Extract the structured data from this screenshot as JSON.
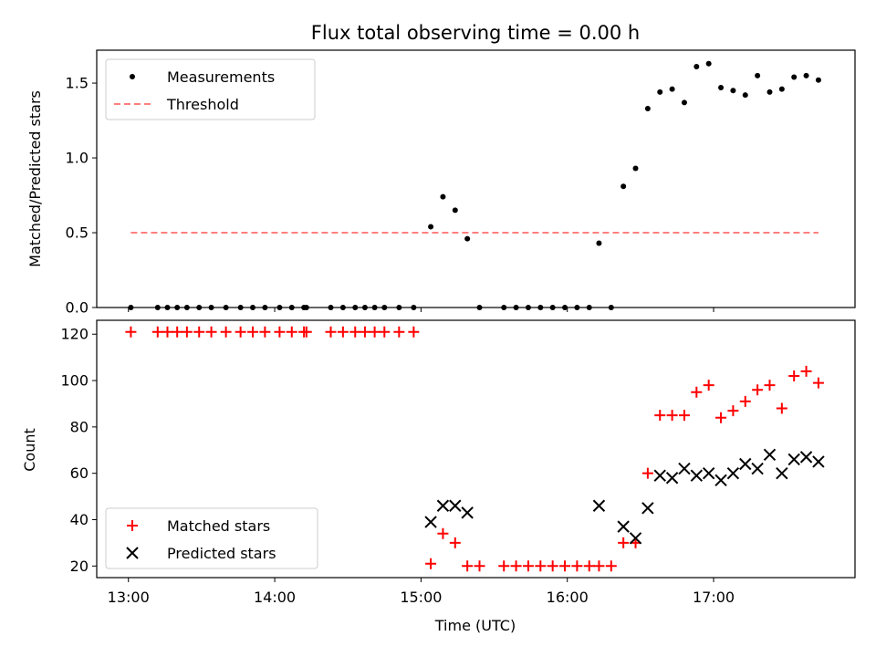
{
  "figure": {
    "title": "Flux total observing time = 0.00 h"
  },
  "chart_data": [
    {
      "type": "scatter",
      "title": "Flux total observing time = 0.00 h",
      "xlabel": "",
      "ylabel": "Matched/Predicted stars",
      "x_axis": {
        "type": "time",
        "range": [
          "12:47",
          "17:58"
        ],
        "ticks": [
          "13:00",
          "14:00",
          "15:00",
          "16:00",
          "17:00"
        ],
        "tick_labels_shown": false
      },
      "ylim": [
        0,
        1.72
      ],
      "yticks": [
        "0.0",
        "0.5",
        "1.0",
        "1.5"
      ],
      "legend": {
        "placement": "top-left",
        "entries": [
          "Measurements",
          "Threshold"
        ]
      },
      "grid": false,
      "series": [
        {
          "name": "Measurements",
          "marker": "dot",
          "color": "#000000",
          "points": [
            [
              "13:01",
              0
            ],
            [
              "13:12",
              0
            ],
            [
              "13:16",
              0
            ],
            [
              "13:20",
              0
            ],
            [
              "13:24",
              0
            ],
            [
              "13:29",
              0
            ],
            [
              "13:34",
              0
            ],
            [
              "13:40",
              0
            ],
            [
              "13:46",
              0
            ],
            [
              "13:51",
              0
            ],
            [
              "13:56",
              0
            ],
            [
              "14:02",
              0
            ],
            [
              "14:07",
              0
            ],
            [
              "14:12",
              0
            ],
            [
              "14:13",
              0
            ],
            [
              "14:23",
              0
            ],
            [
              "14:28",
              0
            ],
            [
              "14:33",
              0
            ],
            [
              "14:37",
              0
            ],
            [
              "14:41",
              0
            ],
            [
              "14:45",
              0
            ],
            [
              "14:51",
              0
            ],
            [
              "14:57",
              0
            ],
            [
              "15:04",
              0.54
            ],
            [
              "15:09",
              0.74
            ],
            [
              "15:14",
              0.65
            ],
            [
              "15:19",
              0.46
            ],
            [
              "15:24",
              0
            ],
            [
              "15:34",
              0
            ],
            [
              "15:39",
              0
            ],
            [
              "15:44",
              0
            ],
            [
              "15:49",
              0
            ],
            [
              "15:54",
              0
            ],
            [
              "15:59",
              0
            ],
            [
              "16:04",
              0
            ],
            [
              "16:09",
              0
            ],
            [
              "16:13",
              0.43
            ],
            [
              "16:18",
              0
            ],
            [
              "16:23",
              0.81
            ],
            [
              "16:28",
              0.93
            ],
            [
              "16:33",
              1.33
            ],
            [
              "16:38",
              1.44
            ],
            [
              "16:43",
              1.46
            ],
            [
              "16:48",
              1.37
            ],
            [
              "16:53",
              1.61
            ],
            [
              "16:58",
              1.63
            ],
            [
              "17:03",
              1.47
            ],
            [
              "17:08",
              1.45
            ],
            [
              "17:13",
              1.42
            ],
            [
              "17:18",
              1.55
            ],
            [
              "17:23",
              1.44
            ],
            [
              "17:28",
              1.46
            ],
            [
              "17:33",
              1.54
            ],
            [
              "17:38",
              1.55
            ],
            [
              "17:43",
              1.52
            ]
          ]
        },
        {
          "name": "Threshold",
          "style": "dashed",
          "color": "#ff7f7f",
          "points": [
            [
              "13:01",
              0.5
            ],
            [
              "17:43",
              0.5
            ]
          ]
        }
      ]
    },
    {
      "type": "scatter",
      "title": "",
      "xlabel": "Time (UTC)",
      "ylabel": "Count",
      "x_axis": {
        "type": "time",
        "range": [
          "12:47",
          "17:58"
        ],
        "ticks": [
          "13:00",
          "14:00",
          "15:00",
          "16:00",
          "17:00"
        ]
      },
      "ylim": [
        15,
        126
      ],
      "yticks": [
        "20",
        "40",
        "60",
        "80",
        "100",
        "120"
      ],
      "legend": {
        "placement": "bottom-left",
        "entries": [
          "Matched stars",
          "Predicted stars"
        ]
      },
      "grid": false,
      "series": [
        {
          "name": "Matched stars",
          "marker": "plus",
          "color": "#ff0000",
          "points": [
            [
              "13:01",
              121
            ],
            [
              "13:12",
              121
            ],
            [
              "13:16",
              121
            ],
            [
              "13:20",
              121
            ],
            [
              "13:24",
              121
            ],
            [
              "13:29",
              121
            ],
            [
              "13:34",
              121
            ],
            [
              "13:40",
              121
            ],
            [
              "13:46",
              121
            ],
            [
              "13:51",
              121
            ],
            [
              "13:56",
              121
            ],
            [
              "14:02",
              121
            ],
            [
              "14:07",
              121
            ],
            [
              "14:12",
              121
            ],
            [
              "14:13",
              121
            ],
            [
              "14:23",
              121
            ],
            [
              "14:28",
              121
            ],
            [
              "14:33",
              121
            ],
            [
              "14:37",
              121
            ],
            [
              "14:41",
              121
            ],
            [
              "14:45",
              121
            ],
            [
              "14:51",
              121
            ],
            [
              "14:57",
              121
            ],
            [
              "15:04",
              21
            ],
            [
              "15:09",
              34
            ],
            [
              "15:14",
              30
            ],
            [
              "15:19",
              20
            ],
            [
              "15:24",
              20
            ],
            [
              "15:34",
              20
            ],
            [
              "15:39",
              20
            ],
            [
              "15:44",
              20
            ],
            [
              "15:49",
              20
            ],
            [
              "15:54",
              20
            ],
            [
              "15:59",
              20
            ],
            [
              "16:04",
              20
            ],
            [
              "16:09",
              20
            ],
            [
              "16:13",
              20
            ],
            [
              "16:18",
              20
            ],
            [
              "16:23",
              30
            ],
            [
              "16:28",
              30
            ],
            [
              "16:33",
              60
            ],
            [
              "16:38",
              85
            ],
            [
              "16:43",
              85
            ],
            [
              "16:48",
              85
            ],
            [
              "16:53",
              95
            ],
            [
              "16:58",
              98
            ],
            [
              "17:03",
              84
            ],
            [
              "17:08",
              87
            ],
            [
              "17:13",
              91
            ],
            [
              "17:18",
              96
            ],
            [
              "17:23",
              98
            ],
            [
              "17:28",
              88
            ],
            [
              "17:33",
              102
            ],
            [
              "17:38",
              104
            ],
            [
              "17:43",
              99
            ]
          ]
        },
        {
          "name": "Predicted stars",
          "marker": "x",
          "color": "#000000",
          "points": [
            [
              "15:04",
              39
            ],
            [
              "15:09",
              46
            ],
            [
              "15:14",
              46
            ],
            [
              "15:19",
              43
            ],
            [
              "16:13",
              46
            ],
            [
              "16:23",
              37
            ],
            [
              "16:28",
              32
            ],
            [
              "16:33",
              45
            ],
            [
              "16:38",
              59
            ],
            [
              "16:43",
              58
            ],
            [
              "16:48",
              62
            ],
            [
              "16:53",
              59
            ],
            [
              "16:58",
              60
            ],
            [
              "17:03",
              57
            ],
            [
              "17:08",
              60
            ],
            [
              "17:13",
              64
            ],
            [
              "17:18",
              62
            ],
            [
              "17:23",
              68
            ],
            [
              "17:28",
              60
            ],
            [
              "17:33",
              66
            ],
            [
              "17:38",
              67
            ],
            [
              "17:43",
              65
            ]
          ]
        }
      ]
    }
  ]
}
